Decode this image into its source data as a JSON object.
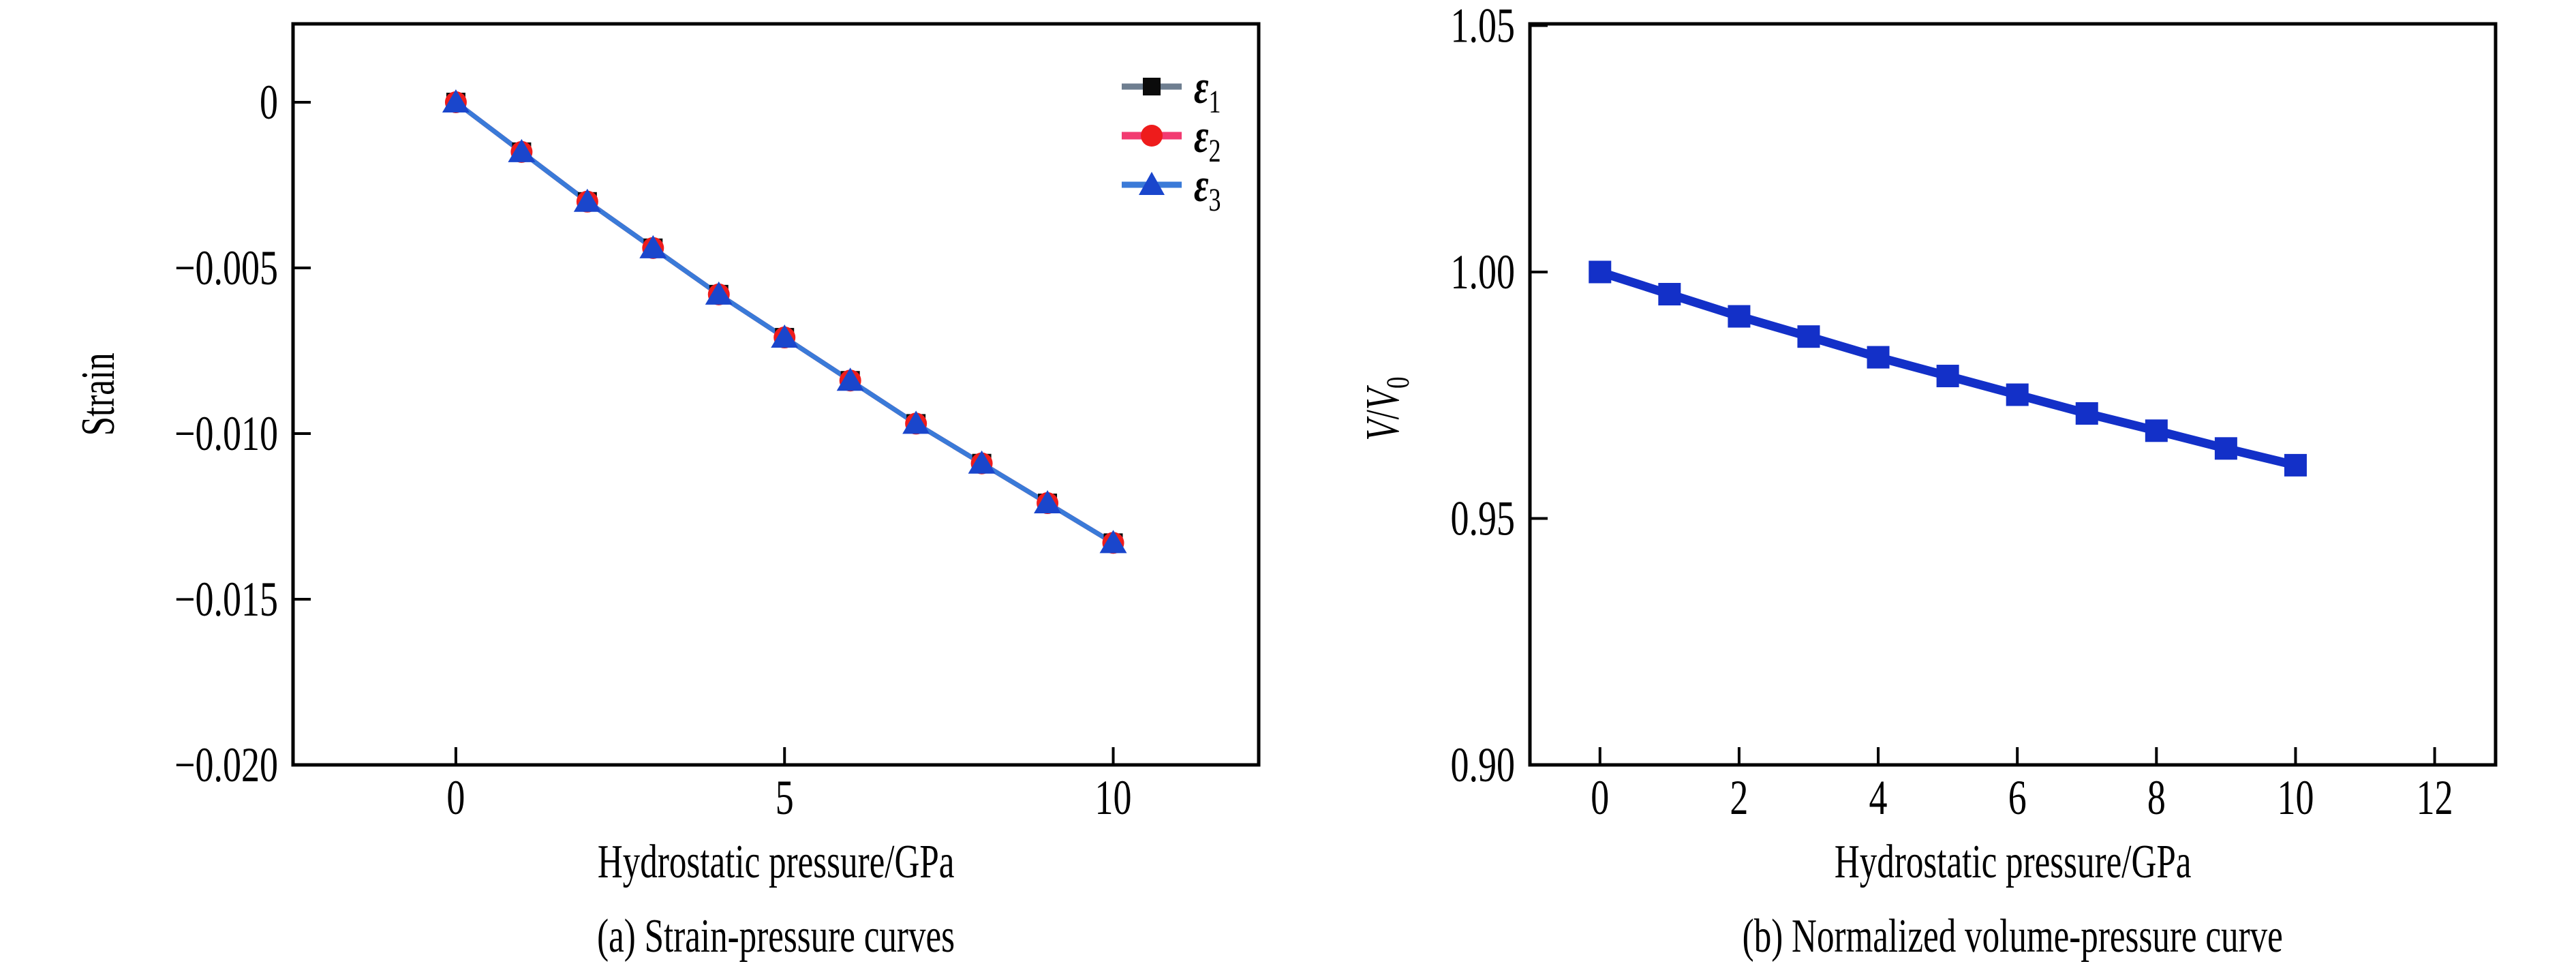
{
  "figure": {
    "background": "#ffffff",
    "description": "Two-panel figure of strain and normalized volume versus hydrostatic pressure"
  },
  "colors": {
    "axis": "#000000",
    "text": "#000000",
    "epsilon1_line": "#6e7e90",
    "epsilon1_marker": "#0b0b0b",
    "epsilon2_line": "#f23b71",
    "epsilon2_marker": "#ee1c1c",
    "epsilon3_line": "#3a7ad8",
    "epsilon3_marker": "#1a46cc",
    "volume_series": "#1330c8"
  },
  "chart_data": [
    {
      "type": "line",
      "title": "(a) Strain-pressure curves",
      "xlabel": "Hydrostatic pressure/GPa",
      "ylabel": "Strain",
      "grid": false,
      "legend_position": "top-right",
      "x": [
        0,
        1,
        2,
        3,
        4,
        5,
        6,
        7,
        8,
        9,
        10
      ],
      "series": [
        {
          "name": "ε1",
          "symbol": "ε",
          "sub": "1",
          "marker": "square",
          "line_color": "#6e7e90",
          "marker_color": "#0b0b0b",
          "values": [
            0,
            -0.0015,
            -0.003,
            -0.0044,
            -0.0058,
            -0.0071,
            -0.0084,
            -0.0097,
            -0.0109,
            -0.0121,
            -0.0133
          ]
        },
        {
          "name": "ε2",
          "symbol": "ε",
          "sub": "2",
          "marker": "circle",
          "line_color": "#f23b71",
          "marker_color": "#ee1c1c",
          "values": [
            0,
            -0.0015,
            -0.003,
            -0.0044,
            -0.0058,
            -0.0071,
            -0.0084,
            -0.0097,
            -0.0109,
            -0.0121,
            -0.0133
          ]
        },
        {
          "name": "ε3",
          "symbol": "ε",
          "sub": "3",
          "marker": "triangle",
          "line_color": "#3a7ad8",
          "marker_color": "#1a46cc",
          "values": [
            0,
            -0.0015,
            -0.003,
            -0.0044,
            -0.0058,
            -0.0071,
            -0.0084,
            -0.0097,
            -0.0109,
            -0.0121,
            -0.0133
          ]
        }
      ],
      "xticks": [
        0,
        5,
        10
      ],
      "xtick_labels": [
        "0",
        "5",
        "10"
      ],
      "yticks": [
        0,
        -0.005,
        -0.01,
        -0.015,
        -0.02
      ],
      "ytick_labels": [
        "0",
        "−0.005",
        "−0.010",
        "−0.015",
        "−0.020"
      ],
      "xlim": [
        -2.477,
        12.213
      ],
      "ylim": [
        -0.02,
        0.002366
      ]
    },
    {
      "type": "line",
      "title": "(b) Normalized volume-pressure curve",
      "xlabel": "Hydrostatic pressure/GPa",
      "ylabel": "V/V0",
      "ylabel_parts": {
        "v1": "V",
        "slash": "/",
        "v2": "V",
        "sub": "0"
      },
      "grid": false,
      "legend_position": "none",
      "x": [
        0,
        1,
        2,
        3,
        4,
        5,
        6,
        7,
        8,
        9,
        10
      ],
      "series": [
        {
          "name": "V/V0",
          "marker": "square",
          "line_color": "#1330c8",
          "marker_color": "#1330c8",
          "values": [
            1.0,
            0.9955,
            0.991,
            0.9869,
            0.9827,
            0.9789,
            0.9751,
            0.9713,
            0.9678,
            0.9642,
            0.9608
          ]
        }
      ],
      "xticks": [
        0,
        2,
        4,
        6,
        8,
        10,
        12
      ],
      "xtick_labels": [
        "0",
        "2",
        "4",
        "6",
        "8",
        "10",
        "12"
      ],
      "yticks": [
        1.05,
        1.0,
        0.95,
        0.9
      ],
      "ytick_labels": [
        "1.05",
        "1.00",
        "0.95",
        "0.90"
      ],
      "xlim": [
        -1.007,
        12.876
      ],
      "ylim": [
        0.9,
        1.05034
      ]
    }
  ]
}
